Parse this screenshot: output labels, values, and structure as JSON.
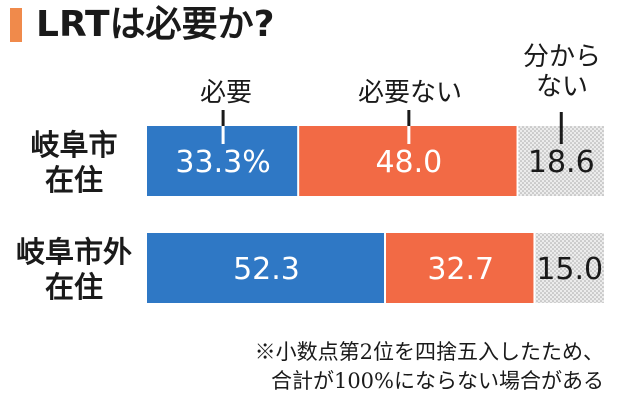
{
  "title": "LRTは必要か?",
  "colors": {
    "accent": "#f08a4b",
    "needed": "#2f78c5",
    "not_needed": "#f26a45",
    "unknown": "#d9d9d9"
  },
  "legend": {
    "needed": "必要",
    "not_needed": "必要ない",
    "unknown_line1": "分から",
    "unknown_line2": "ない"
  },
  "rows": [
    {
      "label_line1": "岐阜市",
      "label_line2": "在住"
    },
    {
      "label_line1": "岐阜市外",
      "label_line2": "在住"
    }
  ],
  "note": {
    "line1": "※小数点第2位を四捨五入したため、",
    "line2": "合計が100%にならない場合がある"
  },
  "chart_data": {
    "type": "bar",
    "orientation": "horizontal",
    "stacked": true,
    "title": "LRTは必要か?",
    "categories": [
      "岐阜市在住",
      "岐阜市外在住"
    ],
    "series": [
      {
        "name": "必要",
        "values": [
          33.3,
          52.3
        ],
        "labels": [
          "33.3%",
          "52.3"
        ]
      },
      {
        "name": "必要ない",
        "values": [
          48.0,
          32.7
        ],
        "labels": [
          "48.0",
          "32.7"
        ]
      },
      {
        "name": "分からない",
        "values": [
          18.6,
          15.0
        ],
        "labels": [
          "18.6",
          "15.0"
        ]
      }
    ],
    "xlim": [
      0,
      100
    ],
    "grid": false,
    "legend_position": "top"
  }
}
